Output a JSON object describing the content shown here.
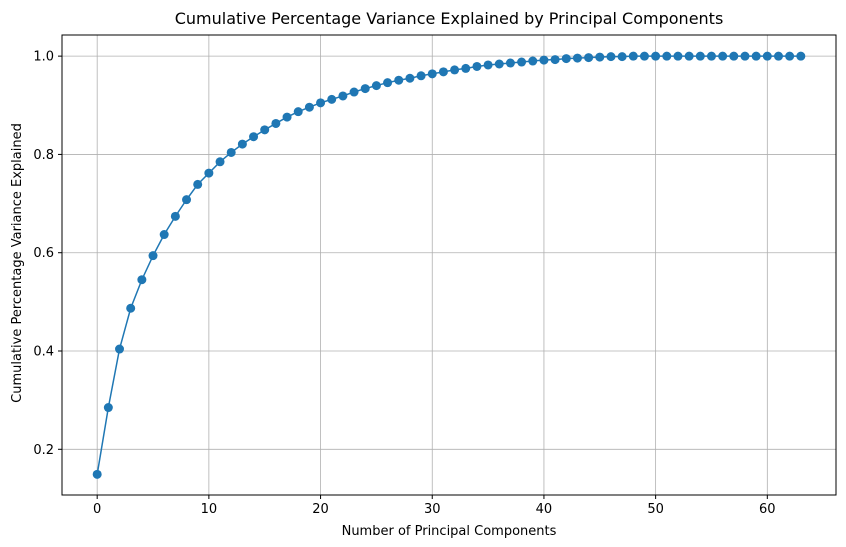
{
  "chart_data": {
    "type": "line",
    "title": "Cumulative Percentage Variance Explained by Principal Components",
    "xlabel": "Number of Principal Components",
    "ylabel": "Cumulative Percentage Variance Explained",
    "xlim": [
      -3.15,
      66.15
    ],
    "ylim": [
      0.107,
      1.043
    ],
    "xticks": [
      0,
      10,
      20,
      30,
      40,
      50,
      60
    ],
    "xtick_labels": [
      "0",
      "10",
      "20",
      "30",
      "40",
      "50",
      "60"
    ],
    "yticks": [
      0.2,
      0.4,
      0.6,
      0.8,
      1.0
    ],
    "ytick_labels": [
      "0.2",
      "0.4",
      "0.6",
      "0.8",
      "1.0"
    ],
    "grid": true,
    "marker": "circle",
    "color": "#1f77b4",
    "series": [
      {
        "x": [
          0,
          1,
          2,
          3,
          4,
          5,
          6,
          7,
          8,
          9,
          10,
          11,
          12,
          13,
          14,
          15,
          16,
          17,
          18,
          19,
          20,
          21,
          22,
          23,
          24,
          25,
          26,
          27,
          28,
          29,
          30,
          31,
          32,
          33,
          34,
          35,
          36,
          37,
          38,
          39,
          40,
          41,
          42,
          43,
          44,
          45,
          46,
          47,
          48,
          49,
          50,
          51,
          52,
          53,
          54,
          55,
          56,
          57,
          58,
          59,
          60,
          61,
          62,
          63
        ],
        "y": [
          0.149,
          0.285,
          0.404,
          0.487,
          0.545,
          0.594,
          0.637,
          0.674,
          0.708,
          0.739,
          0.762,
          0.785,
          0.804,
          0.821,
          0.836,
          0.85,
          0.863,
          0.876,
          0.887,
          0.896,
          0.905,
          0.912,
          0.919,
          0.927,
          0.934,
          0.94,
          0.946,
          0.951,
          0.955,
          0.96,
          0.964,
          0.968,
          0.972,
          0.975,
          0.979,
          0.982,
          0.984,
          0.986,
          0.988,
          0.99,
          0.992,
          0.993,
          0.995,
          0.996,
          0.997,
          0.998,
          0.999,
          0.999,
          1.0,
          1.0,
          1.0,
          1.0,
          1.0,
          1.0,
          1.0,
          1.0,
          1.0,
          1.0,
          1.0,
          1.0,
          1.0,
          1.0,
          1.0,
          1.0
        ]
      }
    ]
  }
}
